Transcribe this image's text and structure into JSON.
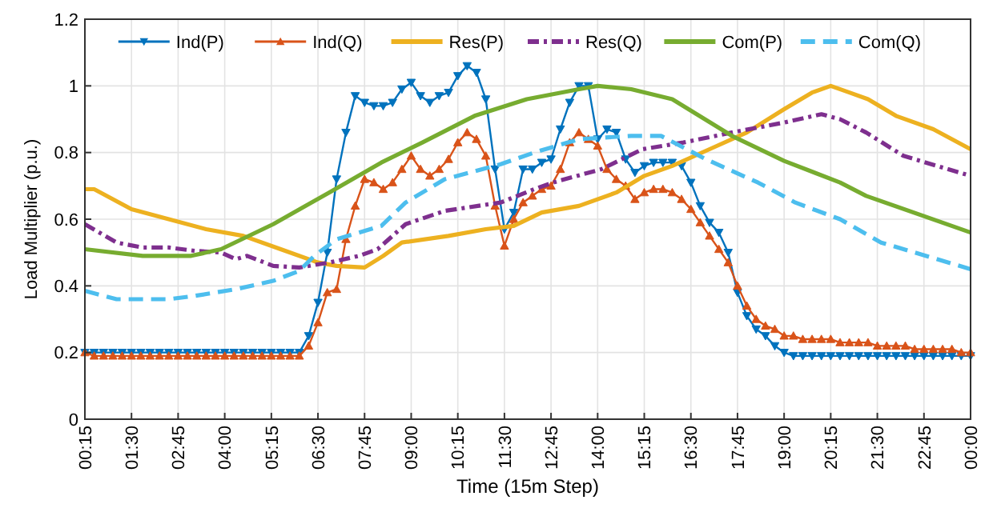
{
  "chart_data": {
    "type": "line",
    "xlabel": "Time (15m Step)",
    "ylabel": "Load Multiplier (p.u.)",
    "x": [
      0.25,
      0.5,
      0.75,
      1,
      1.25,
      1.5,
      1.75,
      2,
      2.25,
      2.5,
      2.75,
      3,
      3.25,
      3.5,
      3.75,
      4,
      4.25,
      4.5,
      4.75,
      5,
      5.25,
      5.5,
      5.75,
      6,
      6.25,
      6.5,
      6.75,
      7,
      7.25,
      7.5,
      7.75,
      8,
      8.25,
      8.5,
      8.75,
      9,
      9.25,
      9.5,
      9.75,
      10,
      10.25,
      10.5,
      10.75,
      11,
      11.25,
      11.5,
      11.75,
      12,
      12.25,
      12.5,
      12.75,
      13,
      13.25,
      13.5,
      13.75,
      14,
      14.25,
      14.5,
      14.75,
      15,
      15.25,
      15.5,
      15.75,
      16,
      16.25,
      16.5,
      16.75,
      17,
      17.25,
      17.5,
      17.75,
      18,
      18.25,
      18.5,
      18.75,
      19,
      19.25,
      19.5,
      19.75,
      20,
      20.25,
      20.5,
      20.75,
      21,
      21.25,
      21.5,
      21.75,
      22,
      22.25,
      22.5,
      22.75,
      23,
      23.25,
      23.5,
      23.75,
      24
    ],
    "xlim": [
      0.25,
      24
    ],
    "xticks": [
      {
        "value": 0.25,
        "label": "00:15"
      },
      {
        "value": 1.5,
        "label": "01:30"
      },
      {
        "value": 2.75,
        "label": "02:45"
      },
      {
        "value": 4,
        "label": "04:00"
      },
      {
        "value": 5.25,
        "label": "05:15"
      },
      {
        "value": 6.5,
        "label": "06:30"
      },
      {
        "value": 7.75,
        "label": "07:45"
      },
      {
        "value": 9,
        "label": "09:00"
      },
      {
        "value": 10.25,
        "label": "10:15"
      },
      {
        "value": 11.5,
        "label": "11:30"
      },
      {
        "value": 12.75,
        "label": "12:45"
      },
      {
        "value": 14,
        "label": "14:00"
      },
      {
        "value": 15.25,
        "label": "15:15"
      },
      {
        "value": 16.5,
        "label": "16:30"
      },
      {
        "value": 17.75,
        "label": "17:45"
      },
      {
        "value": 19,
        "label": "19:00"
      },
      {
        "value": 20.25,
        "label": "20:15"
      },
      {
        "value": 21.5,
        "label": "21:30"
      },
      {
        "value": 22.75,
        "label": "22:45"
      },
      {
        "value": 24,
        "label": "00:00"
      }
    ],
    "ylim": [
      0,
      1.2
    ],
    "yticks": [
      0,
      0.2,
      0.4,
      0.6,
      0.8,
      1,
      1.2
    ],
    "grid": true,
    "legend": "top",
    "series": [
      {
        "name": "Ind(P)",
        "color": "#0072bd",
        "marker": "triangle-down",
        "line_style": "solid",
        "values": [
          0.2,
          0.2,
          0.2,
          0.2,
          0.2,
          0.2,
          0.2,
          0.2,
          0.2,
          0.2,
          0.2,
          0.2,
          0.2,
          0.2,
          0.2,
          0.2,
          0.2,
          0.2,
          0.2,
          0.2,
          0.2,
          0.2,
          0.2,
          0.2,
          0.25,
          0.35,
          0.5,
          0.72,
          0.86,
          0.97,
          0.95,
          0.94,
          0.94,
          0.95,
          0.99,
          1.01,
          0.97,
          0.95,
          0.97,
          0.98,
          1.03,
          1.06,
          1.04,
          0.96,
          0.75,
          0.57,
          0.62,
          0.75,
          0.75,
          0.77,
          0.78,
          0.87,
          0.95,
          1.0,
          1.0,
          0.84,
          0.87,
          0.86,
          0.78,
          0.74,
          0.76,
          0.77,
          0.77,
          0.77,
          0.76,
          0.71,
          0.64,
          0.59,
          0.56,
          0.5,
          0.38,
          0.31,
          0.27,
          0.25,
          0.22,
          0.2,
          0.19,
          0.19,
          0.19,
          0.19,
          0.19,
          0.19,
          0.19,
          0.19,
          0.19,
          0.19,
          0.19,
          0.19,
          0.19,
          0.19,
          0.19,
          0.19,
          0.19,
          0.19,
          0.19,
          0.19
        ]
      },
      {
        "name": "Ind(Q)",
        "color": "#d95319",
        "marker": "triangle",
        "line_style": "solid",
        "values": [
          0.2,
          0.19,
          0.19,
          0.19,
          0.19,
          0.19,
          0.19,
          0.19,
          0.19,
          0.19,
          0.19,
          0.19,
          0.19,
          0.19,
          0.19,
          0.19,
          0.19,
          0.19,
          0.19,
          0.19,
          0.19,
          0.19,
          0.19,
          0.19,
          0.22,
          0.29,
          0.38,
          0.39,
          0.54,
          0.64,
          0.72,
          0.71,
          0.69,
          0.71,
          0.75,
          0.79,
          0.75,
          0.73,
          0.75,
          0.78,
          0.83,
          0.86,
          0.84,
          0.79,
          0.64,
          0.52,
          0.6,
          0.65,
          0.67,
          0.69,
          0.7,
          0.75,
          0.83,
          0.86,
          0.84,
          0.82,
          0.75,
          0.72,
          0.7,
          0.66,
          0.68,
          0.69,
          0.69,
          0.68,
          0.66,
          0.63,
          0.59,
          0.55,
          0.51,
          0.47,
          0.4,
          0.34,
          0.3,
          0.28,
          0.27,
          0.25,
          0.25,
          0.24,
          0.24,
          0.24,
          0.24,
          0.23,
          0.23,
          0.23,
          0.23,
          0.22,
          0.22,
          0.22,
          0.22,
          0.21,
          0.21,
          0.21,
          0.21,
          0.21,
          0.2,
          0.2
        ]
      },
      {
        "name": "Res(P)",
        "color": "#edb120",
        "marker": "none",
        "line_style": "solid",
        "x": [
          0.25,
          0.5,
          1,
          1.5,
          2.5,
          3.5,
          4.5,
          5.5,
          6.5,
          7,
          7.75,
          8.25,
          8.75,
          10,
          11,
          11.75,
          12.5,
          13.5,
          14.5,
          15.25,
          16,
          17,
          18,
          19,
          19.75,
          20.25,
          20.75,
          21.25,
          22,
          23,
          24
        ],
        "values": [
          0.69,
          0.69,
          0.66,
          0.63,
          0.6,
          0.57,
          0.55,
          0.51,
          0.47,
          0.46,
          0.455,
          0.49,
          0.53,
          0.55,
          0.57,
          0.58,
          0.62,
          0.64,
          0.68,
          0.73,
          0.76,
          0.81,
          0.86,
          0.93,
          0.98,
          1.0,
          0.98,
          0.96,
          0.91,
          0.87,
          0.81
        ]
      },
      {
        "name": "Res(Q)",
        "color": "#7e2f8e",
        "marker": "none",
        "line_style": "dashdot",
        "x": [
          0.25,
          1.1,
          1.8,
          2.5,
          3.2,
          3.9,
          4.3,
          4.6,
          5.3,
          6,
          6.8,
          7.6,
          8.1,
          8.85,
          9.9,
          11.4,
          12.3,
          12.8,
          14.1,
          15.2,
          16.3,
          17.6,
          19,
          20,
          20.5,
          21.2,
          22.2,
          24
        ],
        "values": [
          0.585,
          0.53,
          0.515,
          0.515,
          0.505,
          0.5,
          0.48,
          0.49,
          0.46,
          0.455,
          0.47,
          0.49,
          0.51,
          0.585,
          0.625,
          0.65,
          0.69,
          0.71,
          0.75,
          0.81,
          0.83,
          0.86,
          0.89,
          0.915,
          0.9,
          0.86,
          0.79,
          0.73
        ]
      },
      {
        "name": "Com(P)",
        "color": "#77ac30",
        "marker": "none",
        "line_style": "solid",
        "x": [
          0.25,
          1.8,
          3.1,
          3.9,
          5.3,
          6.8,
          8.2,
          9.3,
          10.7,
          12.1,
          13.5,
          14,
          14.9,
          16,
          17.6,
          19,
          20.5,
          21.2,
          24
        ],
        "values": [
          0.51,
          0.49,
          0.49,
          0.51,
          0.585,
          0.68,
          0.77,
          0.83,
          0.91,
          0.96,
          0.99,
          1.0,
          0.99,
          0.96,
          0.85,
          0.775,
          0.71,
          0.67,
          0.56
        ]
      },
      {
        "name": "Com(Q)",
        "color": "#4dbeee",
        "marker": "none",
        "line_style": "dashed",
        "x": [
          0.25,
          1.1,
          2.5,
          3.2,
          4.3,
          5.3,
          6,
          6.4,
          7,
          8.2,
          8.85,
          9.9,
          11.4,
          12.3,
          13.5,
          14.9,
          15.7,
          16.9,
          18.3,
          19.3,
          20.5,
          21.6,
          24
        ],
        "values": [
          0.385,
          0.36,
          0.36,
          0.37,
          0.39,
          0.415,
          0.445,
          0.49,
          0.54,
          0.58,
          0.65,
          0.72,
          0.765,
          0.8,
          0.84,
          0.85,
          0.85,
          0.78,
          0.71,
          0.65,
          0.6,
          0.53,
          0.45
        ]
      }
    ]
  }
}
